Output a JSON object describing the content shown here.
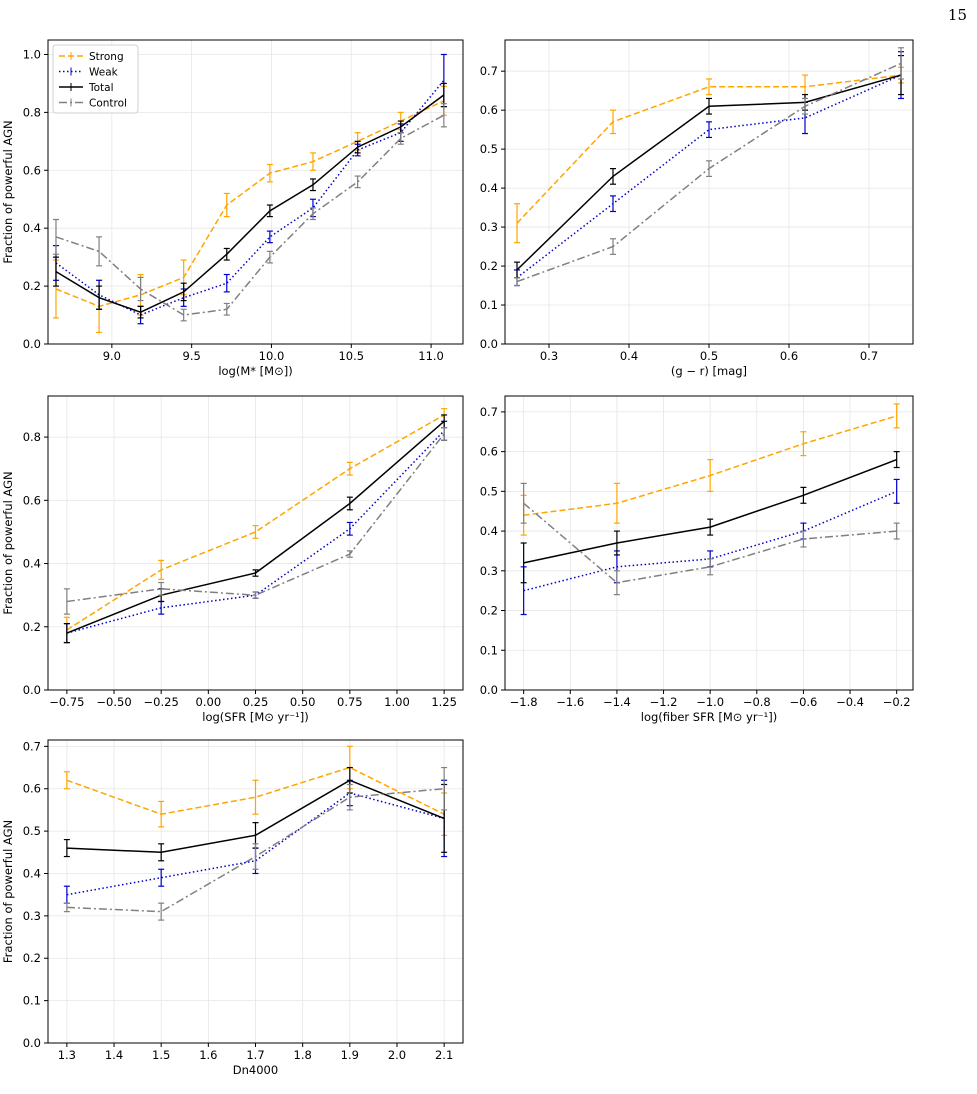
{
  "page_number": "15",
  "colors": {
    "strong": "#FFA500",
    "weak": "#0000CD",
    "total": "#000000",
    "control": "#808080",
    "grid": "#E6E6E6"
  },
  "chart_data": [
    {
      "type": "line",
      "xlabel": "log(M* [M⊙])",
      "ylabel": "Fraction of powerful AGN",
      "xlim": [
        8.6,
        11.2
      ],
      "ylim": [
        0.0,
        1.05
      ],
      "xticks": [
        9.0,
        9.5,
        10.0,
        10.5,
        11.0
      ],
      "xtick_labels": [
        "9.0",
        "9.5",
        "10.0",
        "10.5",
        "11.0"
      ],
      "yticks": [
        0.0,
        0.2,
        0.4,
        0.6,
        0.8,
        1.0
      ],
      "ytick_labels": [
        "0.0",
        "0.2",
        "0.4",
        "0.6",
        "0.8",
        "1.0"
      ],
      "legend": {
        "placement": "top-left",
        "entries": [
          "Strong",
          "Weak",
          "Total",
          "Control"
        ]
      },
      "grid": true,
      "x": [
        8.65,
        8.92,
        9.18,
        9.45,
        9.72,
        9.99,
        10.26,
        10.54,
        10.81,
        11.08
      ],
      "series": [
        {
          "name": "Strong",
          "values": [
            0.19,
            0.13,
            0.17,
            0.23,
            0.48,
            0.59,
            0.63,
            0.7,
            0.77,
            0.84
          ],
          "errors": [
            0.1,
            0.09,
            0.07,
            0.06,
            0.04,
            0.03,
            0.03,
            0.03,
            0.03,
            0.05
          ]
        },
        {
          "name": "Weak",
          "values": [
            0.28,
            0.17,
            0.1,
            0.16,
            0.21,
            0.37,
            0.47,
            0.67,
            0.73,
            0.91
          ],
          "errors": [
            0.06,
            0.05,
            0.03,
            0.03,
            0.03,
            0.02,
            0.03,
            0.02,
            0.03,
            0.09
          ]
        },
        {
          "name": "Total",
          "values": [
            0.25,
            0.16,
            0.11,
            0.18,
            0.31,
            0.46,
            0.55,
            0.68,
            0.75,
            0.86
          ],
          "errors": [
            0.05,
            0.04,
            0.02,
            0.03,
            0.02,
            0.02,
            0.02,
            0.02,
            0.02,
            0.04
          ]
        },
        {
          "name": "Control",
          "values": [
            0.37,
            0.32,
            0.19,
            0.1,
            0.12,
            0.3,
            0.45,
            0.56,
            0.71,
            0.79
          ],
          "errors": [
            0.06,
            0.05,
            0.04,
            0.02,
            0.02,
            0.02,
            0.02,
            0.02,
            0.02,
            0.04
          ]
        }
      ]
    },
    {
      "type": "line",
      "xlabel": "(g − r) [mag]",
      "ylabel": "",
      "xlim": [
        0.245,
        0.755
      ],
      "ylim": [
        0.0,
        0.78
      ],
      "xticks": [
        0.3,
        0.4,
        0.5,
        0.6,
        0.7
      ],
      "xtick_labels": [
        "0.3",
        "0.4",
        "0.5",
        "0.6",
        "0.7"
      ],
      "yticks": [
        0.0,
        0.1,
        0.2,
        0.3,
        0.4,
        0.5,
        0.6,
        0.7
      ],
      "ytick_labels": [
        "0.0",
        "0.1",
        "0.2",
        "0.3",
        "0.4",
        "0.5",
        "0.6",
        "0.7"
      ],
      "grid": true,
      "x": [
        0.26,
        0.38,
        0.5,
        0.62,
        0.74
      ],
      "series": [
        {
          "name": "Strong",
          "values": [
            0.31,
            0.57,
            0.66,
            0.66,
            0.69
          ],
          "errors": [
            0.05,
            0.03,
            0.02,
            0.03,
            0.02
          ]
        },
        {
          "name": "Weak",
          "values": [
            0.17,
            0.36,
            0.55,
            0.58,
            0.69
          ],
          "errors": [
            0.02,
            0.02,
            0.02,
            0.04,
            0.06
          ]
        },
        {
          "name": "Total",
          "values": [
            0.19,
            0.43,
            0.61,
            0.62,
            0.69
          ],
          "errors": [
            0.02,
            0.02,
            0.02,
            0.02,
            0.05
          ]
        },
        {
          "name": "Control",
          "values": [
            0.16,
            0.25,
            0.45,
            0.61,
            0.72
          ],
          "errors": [
            0.01,
            0.02,
            0.02,
            0.02,
            0.04
          ]
        }
      ]
    },
    {
      "type": "line",
      "xlabel": "log(SFR [M⊙ yr⁻¹])",
      "ylabel": "Fraction of powerful AGN",
      "xlim": [
        -0.85,
        1.35
      ],
      "ylim": [
        0.0,
        0.93
      ],
      "xticks": [
        -0.75,
        -0.5,
        -0.25,
        0.0,
        0.25,
        0.5,
        0.75,
        1.0,
        1.25
      ],
      "xtick_labels": [
        "−0.75",
        "−0.50",
        "−0.25",
        "0.00",
        "0.25",
        "0.50",
        "0.75",
        "1.00",
        "1.25"
      ],
      "yticks": [
        0.0,
        0.2,
        0.4,
        0.6,
        0.8
      ],
      "ytick_labels": [
        "0.0",
        "0.2",
        "0.4",
        "0.6",
        "0.8"
      ],
      "grid": true,
      "x": [
        -0.75,
        -0.25,
        0.25,
        0.75,
        1.25
      ],
      "series": [
        {
          "name": "Strong",
          "values": [
            0.19,
            0.38,
            0.5,
            0.7,
            0.87
          ],
          "errors": [
            0.04,
            0.03,
            0.02,
            0.02,
            0.02
          ]
        },
        {
          "name": "Weak",
          "values": [
            0.18,
            0.26,
            0.3,
            0.51,
            0.82
          ],
          "errors": [
            0.03,
            0.02,
            0.01,
            0.02,
            0.03
          ]
        },
        {
          "name": "Total",
          "values": [
            0.18,
            0.3,
            0.37,
            0.59,
            0.85
          ],
          "errors": [
            0.03,
            0.02,
            0.01,
            0.02,
            0.02
          ]
        },
        {
          "name": "Control",
          "values": [
            0.28,
            0.32,
            0.3,
            0.43,
            0.81
          ],
          "errors": [
            0.04,
            0.02,
            0.01,
            0.01,
            0.02
          ]
        }
      ]
    },
    {
      "type": "line",
      "xlabel": "log(fiber SFR [M⊙ yr⁻¹])",
      "ylabel": "",
      "xlim": [
        -1.88,
        -0.13
      ],
      "ylim": [
        0.0,
        0.74
      ],
      "xticks": [
        -1.8,
        -1.6,
        -1.4,
        -1.2,
        -1.0,
        -0.8,
        -0.6,
        -0.4,
        -0.2
      ],
      "xtick_labels": [
        "−1.8",
        "−1.6",
        "−1.4",
        "−1.2",
        "−1.0",
        "−0.8",
        "−0.6",
        "−0.4",
        "−0.2"
      ],
      "yticks": [
        0.0,
        0.1,
        0.2,
        0.3,
        0.4,
        0.5,
        0.6,
        0.7
      ],
      "ytick_labels": [
        "0.0",
        "0.1",
        "0.2",
        "0.3",
        "0.4",
        "0.5",
        "0.6",
        "0.7"
      ],
      "grid": true,
      "x": [
        -1.8,
        -1.4,
        -1.0,
        -0.6,
        -0.2
      ],
      "series": [
        {
          "name": "Strong",
          "values": [
            0.44,
            0.47,
            0.54,
            0.62,
            0.69
          ],
          "errors": [
            0.05,
            0.05,
            0.04,
            0.03,
            0.03
          ]
        },
        {
          "name": "Weak",
          "values": [
            0.25,
            0.31,
            0.33,
            0.4,
            0.5
          ],
          "errors": [
            0.06,
            0.04,
            0.02,
            0.02,
            0.03
          ]
        },
        {
          "name": "Total",
          "values": [
            0.32,
            0.37,
            0.41,
            0.49,
            0.58
          ],
          "errors": [
            0.05,
            0.03,
            0.02,
            0.02,
            0.02
          ]
        },
        {
          "name": "Control",
          "values": [
            0.47,
            0.27,
            0.31,
            0.38,
            0.4
          ],
          "errors": [
            0.05,
            0.03,
            0.02,
            0.02,
            0.02
          ]
        }
      ]
    },
    {
      "type": "line",
      "xlabel": "Dn4000",
      "ylabel": "Fraction of powerful AGN",
      "xlim": [
        1.26,
        2.14
      ],
      "ylim": [
        0.0,
        0.715
      ],
      "xticks": [
        1.3,
        1.4,
        1.5,
        1.6,
        1.7,
        1.8,
        1.9,
        2.0,
        2.1
      ],
      "xtick_labels": [
        "1.3",
        "1.4",
        "1.5",
        "1.6",
        "1.7",
        "1.8",
        "1.9",
        "2.0",
        "2.1"
      ],
      "yticks": [
        0.0,
        0.1,
        0.2,
        0.3,
        0.4,
        0.5,
        0.6,
        0.7
      ],
      "ytick_labels": [
        "0.0",
        "0.1",
        "0.2",
        "0.3",
        "0.4",
        "0.5",
        "0.6",
        "0.7"
      ],
      "grid": true,
      "x": [
        1.3,
        1.5,
        1.7,
        1.9,
        2.1
      ],
      "series": [
        {
          "name": "Strong",
          "values": [
            0.62,
            0.54,
            0.58,
            0.65,
            0.54
          ],
          "errors": [
            0.02,
            0.03,
            0.04,
            0.05,
            0.05
          ]
        },
        {
          "name": "Weak",
          "values": [
            0.35,
            0.39,
            0.43,
            0.59,
            0.53
          ],
          "errors": [
            0.02,
            0.02,
            0.03,
            0.03,
            0.09
          ]
        },
        {
          "name": "Total",
          "values": [
            0.46,
            0.45,
            0.49,
            0.62,
            0.53
          ],
          "errors": [
            0.02,
            0.02,
            0.03,
            0.03,
            0.08
          ]
        },
        {
          "name": "Control",
          "values": [
            0.32,
            0.31,
            0.44,
            0.58,
            0.6
          ],
          "errors": [
            0.01,
            0.02,
            0.03,
            0.03,
            0.05
          ]
        }
      ]
    }
  ]
}
